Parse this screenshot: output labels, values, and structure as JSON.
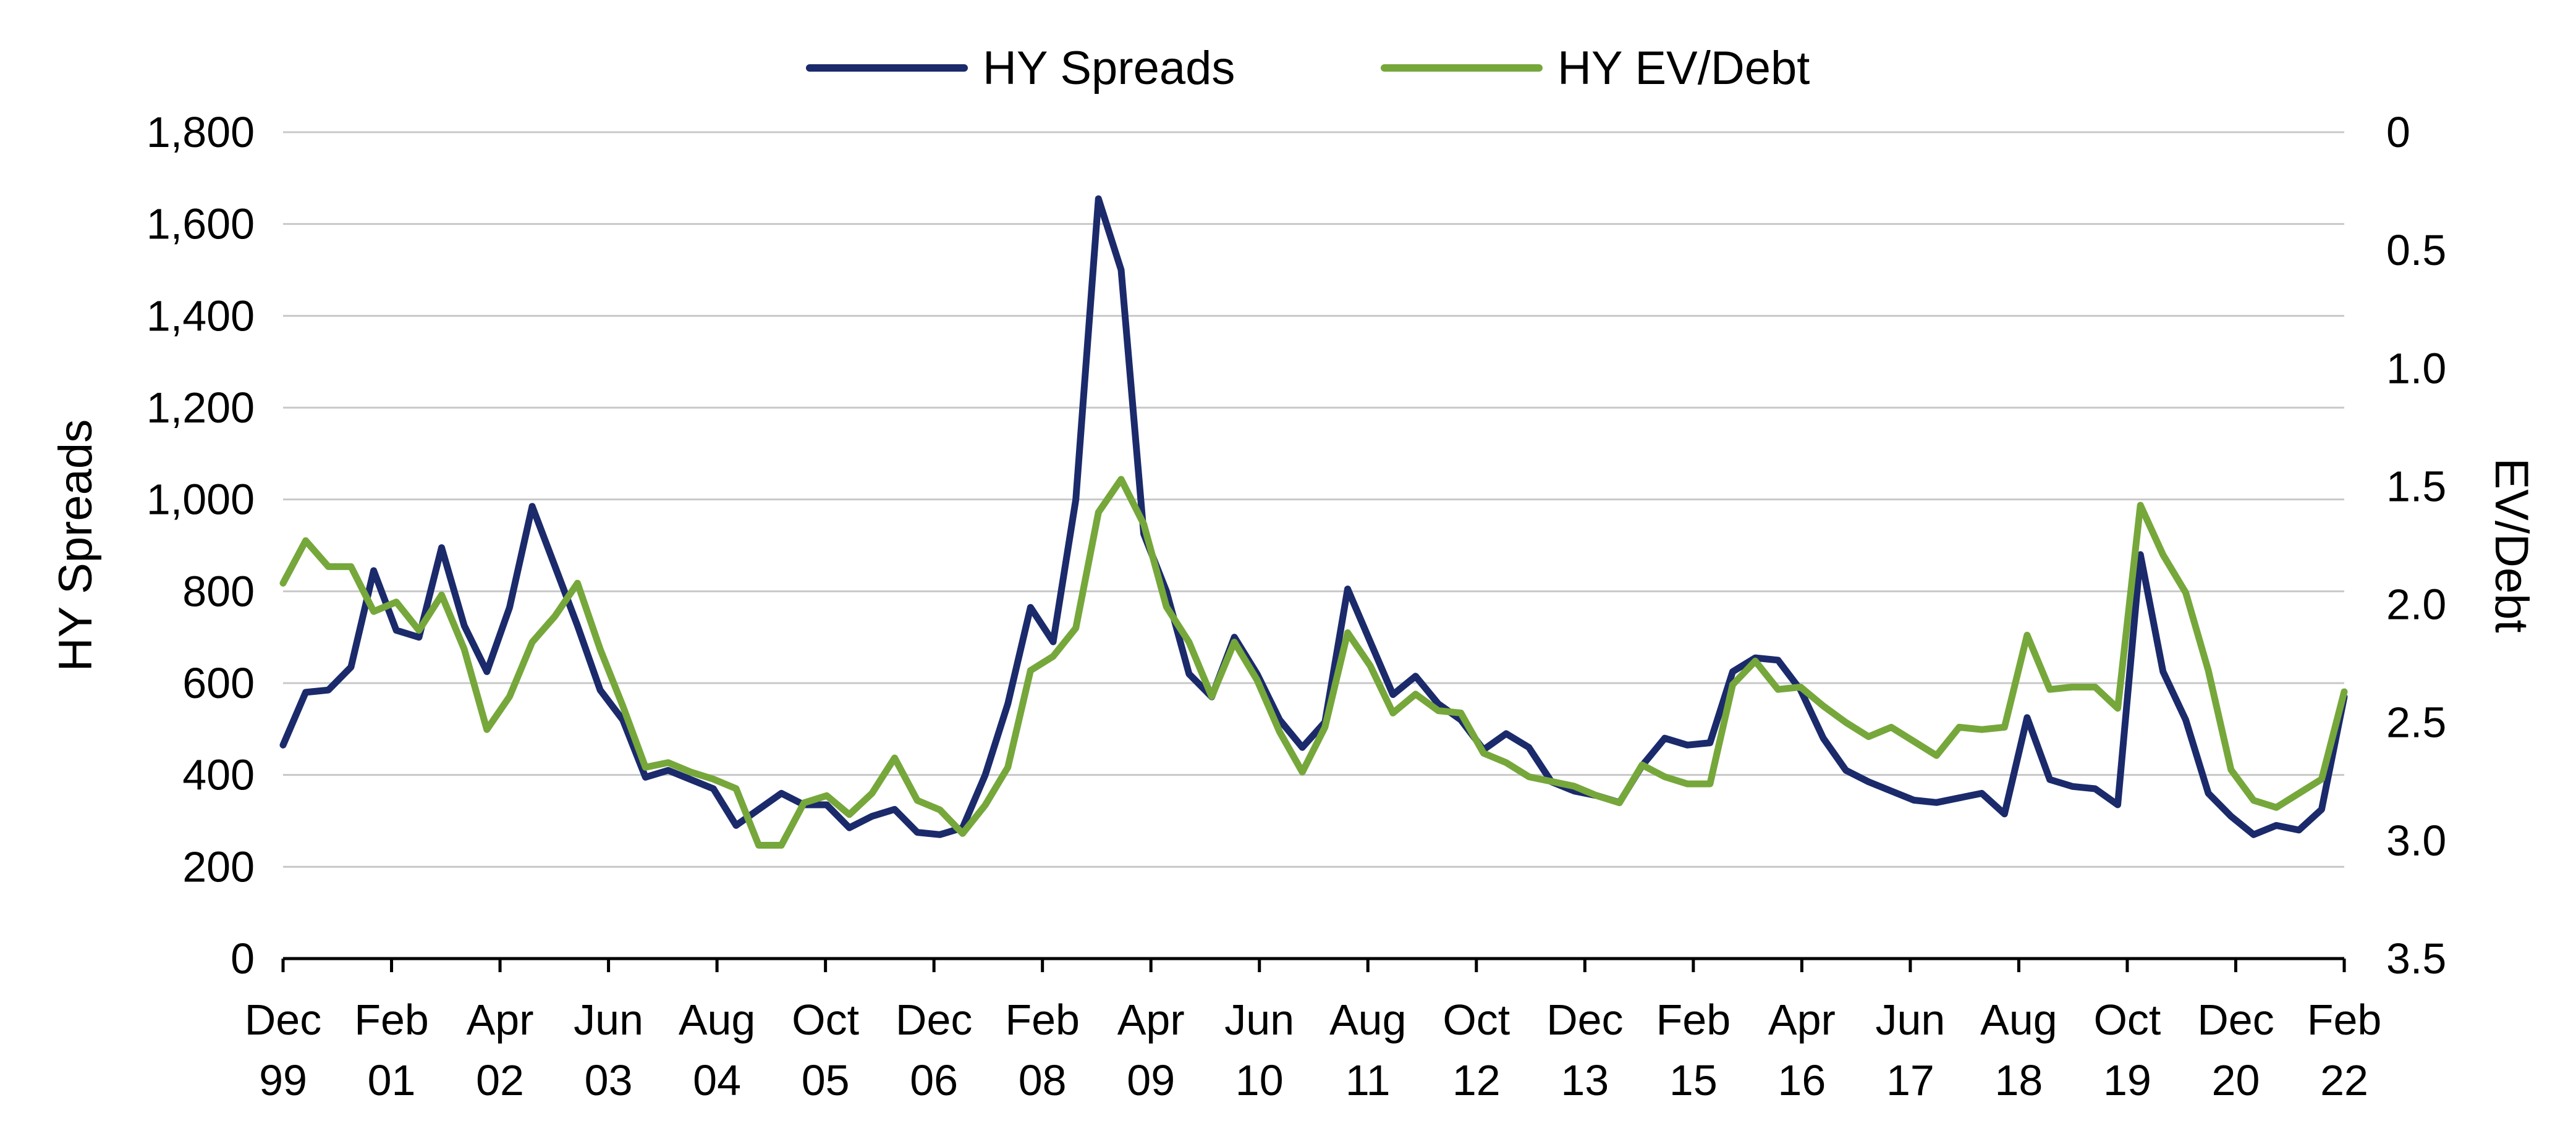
{
  "chart_data": {
    "type": "line",
    "left_axis": {
      "label": "HY Spreads",
      "range": [
        0,
        1800
      ],
      "ticks": [
        0,
        200,
        400,
        600,
        800,
        1000,
        1200,
        1400,
        1600,
        1800
      ],
      "tick_labels": [
        "0",
        "200",
        "400",
        "600",
        "800",
        "1,000",
        "1,200",
        "1,400",
        "1,600",
        "1,800"
      ]
    },
    "right_axis": {
      "label": "EV/Debt",
      "range": [
        0,
        3.5
      ],
      "inverted": true,
      "ticks": [
        0,
        0.5,
        1.0,
        1.5,
        2.0,
        2.5,
        3.0,
        3.5
      ],
      "tick_labels": [
        "0",
        "0.5",
        "1.0",
        "1.5",
        "2.0",
        "2.5",
        "3.0",
        "3.5"
      ]
    },
    "x_axis": {
      "tick_labels": [
        [
          "Dec",
          "99"
        ],
        [
          "Feb",
          "01"
        ],
        [
          "Apr",
          "02"
        ],
        [
          "Jun",
          "03"
        ],
        [
          "Aug",
          "04"
        ],
        [
          "Oct",
          "05"
        ],
        [
          "Dec",
          "06"
        ],
        [
          "Feb",
          "08"
        ],
        [
          "Apr",
          "09"
        ],
        [
          "Jun",
          "10"
        ],
        [
          "Aug",
          "11"
        ],
        [
          "Oct",
          "12"
        ],
        [
          "Dec",
          "13"
        ],
        [
          "Feb",
          "15"
        ],
        [
          "Apr",
          "16"
        ],
        [
          "Jun",
          "17"
        ],
        [
          "Aug",
          "18"
        ],
        [
          "Oct",
          "19"
        ],
        [
          "Dec",
          "20"
        ],
        [
          "Feb",
          "22"
        ]
      ]
    },
    "grid": true,
    "legend_position": "top-center",
    "series": [
      {
        "name": "HY Spreads",
        "axis": "left",
        "color": "#1b2a6b",
        "values": [
          465,
          580,
          585,
          635,
          845,
          715,
          700,
          895,
          725,
          625,
          765,
          985,
          855,
          725,
          585,
          520,
          395,
          410,
          390,
          370,
          290,
          325,
          360,
          335,
          335,
          285,
          310,
          325,
          275,
          270,
          285,
          400,
          555,
          765,
          690,
          1000,
          1655,
          1500,
          925,
          800,
          620,
          570,
          700,
          620,
          520,
          460,
          515,
          805,
          690,
          575,
          615,
          555,
          520,
          455,
          490,
          460,
          385,
          365,
          355,
          340,
          420,
          480,
          465,
          470,
          625,
          655,
          650,
          585,
          480,
          410,
          385,
          365,
          345,
          340,
          350,
          360,
          315,
          525,
          390,
          375,
          370,
          335,
          880,
          625,
          520,
          360,
          310,
          270,
          290,
          280,
          325,
          570
        ]
      },
      {
        "name": "HY EV/Debt",
        "axis": "right",
        "color": "#76a73b",
        "values": [
          1.91,
          1.73,
          1.84,
          1.84,
          2.03,
          1.99,
          2.11,
          1.96,
          2.19,
          2.53,
          2.39,
          2.16,
          2.05,
          1.91,
          2.19,
          2.43,
          2.69,
          2.67,
          2.71,
          2.74,
          2.78,
          3.02,
          3.02,
          2.84,
          2.81,
          2.89,
          2.8,
          2.65,
          2.83,
          2.87,
          2.97,
          2.85,
          2.69,
          2.28,
          2.22,
          2.1,
          1.61,
          1.47,
          1.66,
          2.01,
          2.16,
          2.39,
          2.16,
          2.32,
          2.54,
          2.71,
          2.52,
          2.12,
          2.26,
          2.46,
          2.38,
          2.45,
          2.46,
          2.63,
          2.67,
          2.73,
          2.75,
          2.77,
          2.81,
          2.84,
          2.68,
          2.73,
          2.76,
          2.76,
          2.34,
          2.24,
          2.36,
          2.35,
          2.43,
          2.5,
          2.56,
          2.52,
          2.58,
          2.64,
          2.52,
          2.53,
          2.52,
          2.13,
          2.36,
          2.35,
          2.35,
          2.44,
          1.58,
          1.79,
          1.95,
          2.28,
          2.7,
          2.83,
          2.86,
          2.8,
          2.74,
          2.37
        ]
      }
    ]
  }
}
